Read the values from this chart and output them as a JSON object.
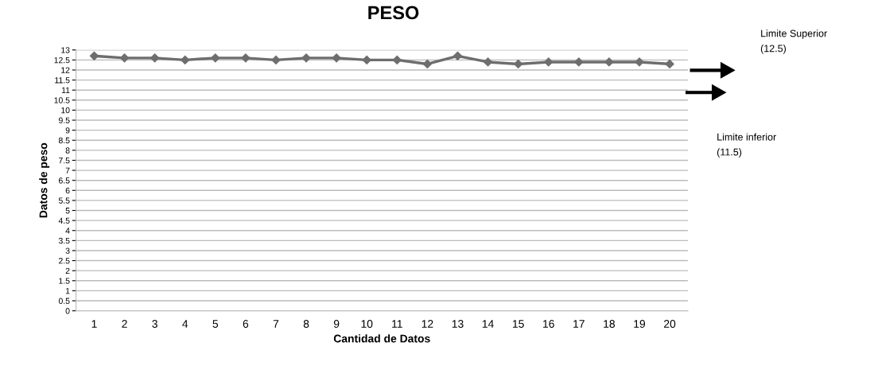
{
  "chart_data": {
    "type": "line",
    "title": "PESO",
    "xlabel": "Cantidad de Datos",
    "ylabel": "Datos de peso",
    "categories": [
      "1",
      "2",
      "3",
      "4",
      "5",
      "6",
      "7",
      "8",
      "9",
      "10",
      "11",
      "12",
      "13",
      "14",
      "15",
      "16",
      "17",
      "18",
      "19",
      "20"
    ],
    "series": [
      {
        "color": "#6e6e6e",
        "values": [
          12.7,
          12.6,
          12.6,
          12.5,
          12.6,
          12.6,
          12.5,
          12.6,
          12.6,
          12.5,
          12.5,
          12.3,
          12.7,
          12.4,
          12.3,
          12.4,
          12.4,
          12.4,
          12.4,
          12.3
        ]
      }
    ],
    "ylim": [
      0,
      13
    ],
    "yticks": [
      0,
      0.5,
      1,
      1.5,
      2,
      2.5,
      3,
      3.5,
      4,
      4.5,
      5,
      5.5,
      6,
      6.5,
      7,
      7.5,
      8,
      8.5,
      9,
      9.5,
      10,
      10.5,
      11,
      11.5,
      12,
      12.5,
      13
    ],
    "grid": "y",
    "marker": "diamond",
    "line_style": "solid",
    "annotations": [
      "Limite Superior\n(12.5)",
      "Limite inferior\n(11.5)"
    ]
  }
}
